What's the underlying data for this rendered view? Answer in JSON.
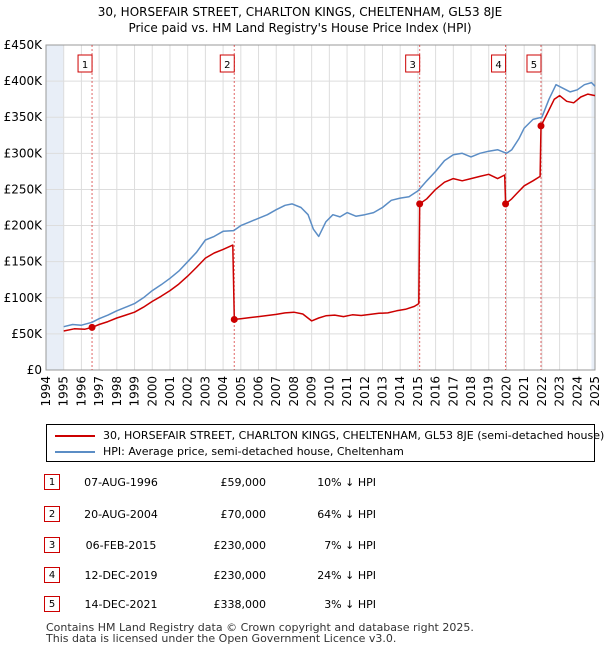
{
  "header": {
    "title_line1": "30, HORSEFAIR STREET, CHARLTON KINGS, CHELTENHAM, GL53 8JE",
    "title_line2": "Price paid vs. HM Land Registry's House Price Index (HPI)"
  },
  "colors": {
    "price_paid": "#cc0000",
    "hpi": "#5b8dc5",
    "grid": "#dddddd",
    "shade": "#e8eef7",
    "marker_line": "#cc0000"
  },
  "chart_data": {
    "type": "line",
    "ylim": [
      0,
      450000
    ],
    "xlim": [
      1994,
      2025
    ],
    "y_ticks": [
      {
        "value": 0,
        "label": "£0"
      },
      {
        "value": 50000,
        "label": "£50K"
      },
      {
        "value": 100000,
        "label": "£100K"
      },
      {
        "value": 150000,
        "label": "£150K"
      },
      {
        "value": 200000,
        "label": "£200K"
      },
      {
        "value": 250000,
        "label": "£250K"
      },
      {
        "value": 300000,
        "label": "£300K"
      },
      {
        "value": 350000,
        "label": "£350K"
      },
      {
        "value": 400000,
        "label": "£400K"
      },
      {
        "value": 450000,
        "label": "£450K"
      }
    ],
    "x_ticks": [
      "1994",
      "1995",
      "1996",
      "1997",
      "1998",
      "1999",
      "2000",
      "2001",
      "2002",
      "2003",
      "2004",
      "2005",
      "2006",
      "2007",
      "2008",
      "2009",
      "2010",
      "2011",
      "2012",
      "2013",
      "2014",
      "2015",
      "2016",
      "2017",
      "2018",
      "2019",
      "2020",
      "2021",
      "2022",
      "2023",
      "2024",
      "2025"
    ],
    "series": [
      {
        "name": "HPI",
        "x": [
          1995,
          1995.5,
          1996,
          1996.6,
          1997,
          1997.5,
          1998,
          1998.5,
          1999,
          1999.5,
          2000,
          2000.5,
          2001,
          2001.5,
          2002,
          2002.5,
          2003,
          2003.5,
          2004,
          2004.6,
          2005,
          2005.5,
          2006,
          2006.5,
          2007,
          2007.5,
          2007.9,
          2008.4,
          2008.8,
          2009.1,
          2009.4,
          2009.8,
          2010.2,
          2010.6,
          2011,
          2011.5,
          2012,
          2012.5,
          2013,
          2013.5,
          2014,
          2014.5,
          2015,
          2015.5,
          2016,
          2016.5,
          2017,
          2017.5,
          2018,
          2018.5,
          2019,
          2019.5,
          2020,
          2020.3,
          2020.7,
          2021,
          2021.5,
          2022,
          2022.4,
          2022.8,
          2023.2,
          2023.6,
          2024,
          2024.4,
          2024.8,
          2025
        ],
        "values": [
          60000,
          63000,
          62000,
          66000,
          71000,
          76000,
          82000,
          87000,
          92000,
          100000,
          110000,
          118000,
          127000,
          137000,
          150000,
          163000,
          180000,
          185000,
          192000,
          193000,
          200000,
          205000,
          210000,
          215000,
          222000,
          228000,
          230000,
          225000,
          215000,
          195000,
          185000,
          205000,
          215000,
          212000,
          218000,
          213000,
          215000,
          218000,
          225000,
          235000,
          238000,
          240000,
          248000,
          262000,
          275000,
          290000,
          298000,
          300000,
          295000,
          300000,
          303000,
          305000,
          300000,
          305000,
          320000,
          335000,
          347000,
          350000,
          375000,
          395000,
          390000,
          385000,
          388000,
          395000,
          398000,
          393000
        ]
      },
      {
        "name": "Price paid",
        "x": [
          1995,
          1995.6,
          1996.2,
          1996.6,
          1997,
          1997.5,
          1998,
          1998.5,
          1999,
          1999.5,
          2000,
          2000.5,
          2001,
          2001.5,
          2002,
          2002.5,
          2003,
          2003.5,
          2004,
          2004.55,
          2004.63,
          2005,
          2005.5,
          2006,
          2006.5,
          2007,
          2007.5,
          2008,
          2008.5,
          2009,
          2009.4,
          2009.8,
          2010.3,
          2010.8,
          2011.3,
          2011.8,
          2012.3,
          2012.8,
          2013.3,
          2013.8,
          2014.3,
          2014.8,
          2015.05,
          2015.1,
          2015.5,
          2016,
          2016.5,
          2017,
          2017.5,
          2018,
          2018.5,
          2019,
          2019.5,
          2019.9,
          2019.95,
          2020.3,
          2020.6,
          2021,
          2021.5,
          2021.9,
          2021.95,
          2022.3,
          2022.7,
          2023,
          2023.4,
          2023.8,
          2024.2,
          2024.6,
          2025
        ],
        "values": [
          54000,
          57000,
          56500,
          59000,
          63000,
          67000,
          72000,
          76000,
          80000,
          87000,
          95000,
          102000,
          110000,
          119000,
          130000,
          142000,
          155000,
          162000,
          167000,
          173000,
          70000,
          71000,
          72500,
          74000,
          75500,
          77000,
          79000,
          80000,
          77500,
          68000,
          72000,
          75000,
          76000,
          74000,
          76500,
          75500,
          77000,
          78500,
          79000,
          82000,
          84000,
          88000,
          92000,
          230000,
          237000,
          250000,
          260000,
          265000,
          262000,
          265000,
          268000,
          271000,
          265000,
          270000,
          230000,
          237000,
          245000,
          255000,
          262000,
          268000,
          338000,
          355000,
          375000,
          380000,
          372000,
          370000,
          378000,
          382000,
          380000
        ]
      }
    ],
    "sales": [
      {
        "num": "1",
        "x": 1996.6,
        "value": 59000
      },
      {
        "num": "2",
        "x": 2004.63,
        "value": 70000
      },
      {
        "num": "3",
        "x": 2015.1,
        "value": 230000
      },
      {
        "num": "4",
        "x": 2019.95,
        "value": 230000
      },
      {
        "num": "5",
        "x": 2021.95,
        "value": 338000
      }
    ]
  },
  "legend": {
    "price_label": "30, HORSEFAIR STREET, CHARLTON KINGS, CHELTENHAM, GL53 8JE (semi-detached house)",
    "hpi_label": "HPI: Average price, semi-detached house, Cheltenham"
  },
  "sales_table": [
    {
      "num": "1",
      "date": "07-AUG-1996",
      "price": "£59,000",
      "hpi": "10% ↓ HPI"
    },
    {
      "num": "2",
      "date": "20-AUG-2004",
      "price": "£70,000",
      "hpi": "64% ↓ HPI"
    },
    {
      "num": "3",
      "date": "06-FEB-2015",
      "price": "£230,000",
      "hpi": "7% ↓ HPI"
    },
    {
      "num": "4",
      "date": "12-DEC-2019",
      "price": "£230,000",
      "hpi": "24% ↓ HPI"
    },
    {
      "num": "5",
      "date": "14-DEC-2021",
      "price": "£338,000",
      "hpi": "3% ↓ HPI"
    }
  ],
  "footer": {
    "line1": "Contains HM Land Registry data © Crown copyright and database right 2025.",
    "line2": "This data is licensed under the Open Government Licence v3.0."
  }
}
